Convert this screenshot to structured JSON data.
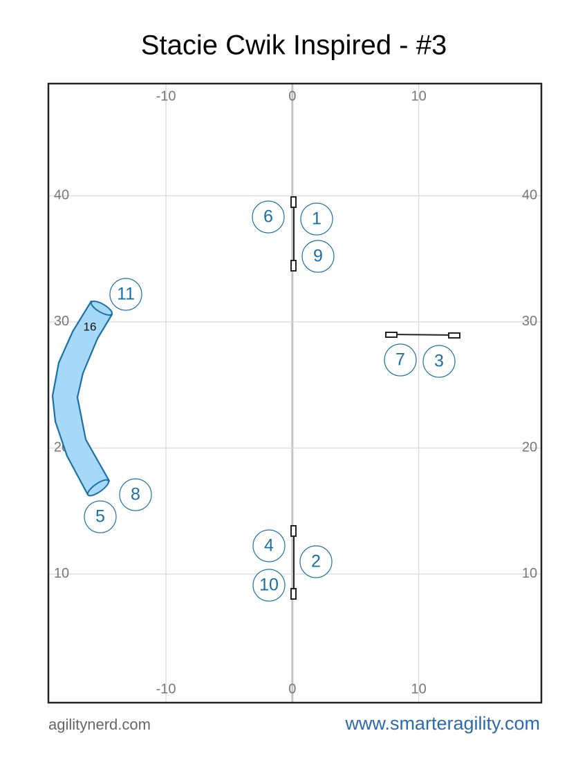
{
  "title": "Stacie Cwik Inspired - #3",
  "axes": {
    "xlim": [
      -19.3,
      19.7
    ],
    "ylim": [
      -0.2,
      48.9
    ],
    "xticks": [
      -10,
      0,
      10
    ],
    "yticks": [
      10,
      20,
      30,
      40
    ]
  },
  "obstacle_numbers": [
    "6",
    "1",
    "9",
    "7",
    "3",
    "4",
    "2",
    "10",
    "11",
    "8",
    "5"
  ],
  "tunnel_label": "16",
  "footer": {
    "left": "agilitynerd.com",
    "right": "www.smarteragility.com"
  }
}
